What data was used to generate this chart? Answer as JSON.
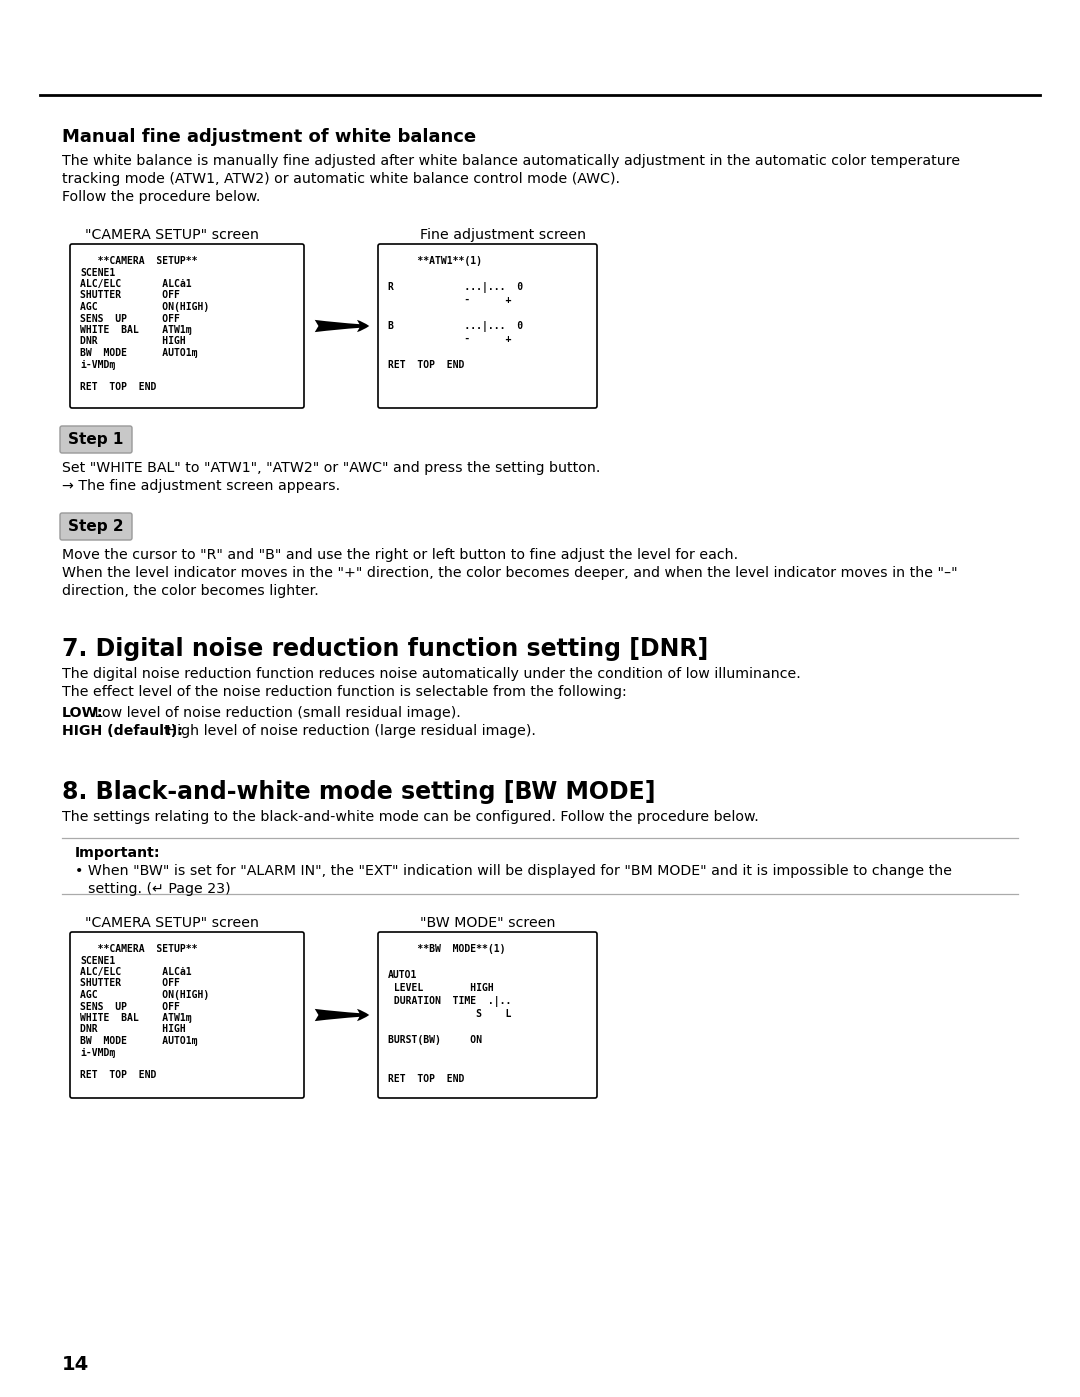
{
  "bg_color": "#ffffff",
  "section_title_1": "Manual fine adjustment of white balance",
  "para1_lines": [
    "The white balance is manually fine adjusted after white balance automatically adjustment in the automatic color temperature",
    "tracking mode (ATW1, ATW2) or automatic white balance control mode (AWC).",
    "Follow the procedure below."
  ],
  "screen_label_1a": "\"CAMERA SETUP\" screen",
  "screen_label_1b": "Fine adjustment screen",
  "camera_setup_screen_1": [
    "   **CAMERA  SETUP**",
    "SCENE1",
    "ALC/ELC       ALCȧ1",
    "SHUTTER       OFF",
    "AGC           ON(HIGH)",
    "SENS  UP      OFF",
    "WHITE  BAL    ATW1ɱ",
    "DNR           HIGH",
    "BW  MODE      AUTO1ɱ",
    "i-VMDɱ",
    "",
    "RET  TOP  END"
  ],
  "fine_adj_screen": [
    "     **ATW1**(1)",
    "",
    "R            ...|...  0",
    "             -      +",
    "",
    "B            ...|...  0",
    "             -      +",
    "",
    "RET  TOP  END"
  ],
  "step1_label": "Step 1",
  "step1_lines": [
    "Set \"WHITE BAL\" to \"ATW1\", \"ATW2\" or \"AWC\" and press the setting button.",
    "→ The fine adjustment screen appears."
  ],
  "step2_label": "Step 2",
  "step2_lines": [
    "Move the cursor to \"R\" and \"B\" and use the right or left button to fine adjust the level for each.",
    "When the level indicator moves in the \"+\" direction, the color becomes deeper, and when the level indicator moves in the \"–\"",
    "direction, the color becomes lighter."
  ],
  "section_title_2": "7. Digital noise reduction function setting [DNR]",
  "para2_lines": [
    "The digital noise reduction function reduces noise automatically under the condition of low illuminance.",
    "The effect level of the noise reduction function is selectable from the following:"
  ],
  "para2_bold_lines": [
    [
      "LOW:",
      " Low level of noise reduction (small residual image)."
    ],
    [
      "HIGH (default):",
      " High level of noise reduction (large residual image)."
    ]
  ],
  "section_title_3": "8. Black-and-white mode setting [BW MODE]",
  "para3_lines": [
    "The settings relating to the black-and-white mode can be configured. Follow the procedure below."
  ],
  "important_label": "Important:",
  "important_line1": "When \"BW\" is set for \"ALARM IN\", the \"EXT\" indication will be displayed for \"BM MODE\" and it is impossible to change the",
  "important_line2": "setting. (↵ Page 23)",
  "screen_label_2a": "\"CAMERA SETUP\" screen",
  "screen_label_2b": "\"BW MODE\" screen",
  "camera_setup_screen_2": [
    "   **CAMERA  SETUP**",
    "SCENE1",
    "ALC/ELC       ALCȧ1",
    "SHUTTER       OFF",
    "AGC           ON(HIGH)",
    "SENS  UP      OFF",
    "WHITE  BAL    ATW1ɱ",
    "DNR           HIGH",
    "BW  MODE      AUTO1ɱ",
    "i-VMDɱ",
    "",
    "RET  TOP  END"
  ],
  "bw_mode_screen": [
    "     **BW  MODE**(1)",
    "",
    "AUTO1",
    " LEVEL        HIGH",
    " DURATION  TIME  .|..",
    "               S    L",
    "",
    "BURST(BW)     ON",
    "",
    "",
    "RET  TOP  END"
  ],
  "page_number": "14"
}
